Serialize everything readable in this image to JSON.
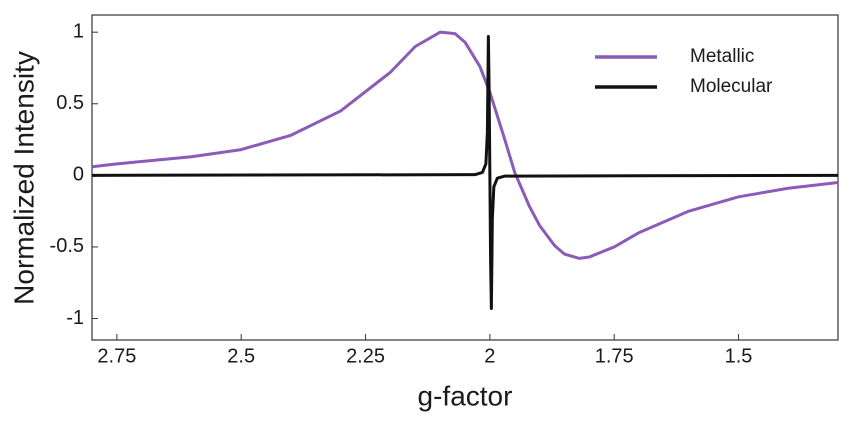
{
  "chart_data": {
    "type": "line",
    "xlabel": "g-factor",
    "ylabel": "Normalized Intensity",
    "xlim": [
      2.8,
      1.3
    ],
    "ylim": [
      -1.15,
      1.12
    ],
    "xticks": [
      2.75,
      2.5,
      2.25,
      2,
      1.75,
      1.5
    ],
    "yticks": [
      1,
      0.5,
      0,
      -0.5,
      -1
    ],
    "grid": false,
    "legend": "upper right",
    "series": [
      {
        "name": "Metallic",
        "color": "#8a5cb8",
        "x": [
          2.8,
          2.75,
          2.6,
          2.5,
          2.4,
          2.3,
          2.2,
          2.15,
          2.1,
          2.07,
          2.05,
          2.02,
          2.0,
          1.97,
          1.95,
          1.92,
          1.9,
          1.87,
          1.85,
          1.82,
          1.8,
          1.75,
          1.7,
          1.6,
          1.5,
          1.4,
          1.3
        ],
        "values": [
          0.06,
          0.08,
          0.13,
          0.18,
          0.28,
          0.45,
          0.72,
          0.9,
          1.0,
          0.99,
          0.93,
          0.76,
          0.58,
          0.25,
          0.02,
          -0.22,
          -0.35,
          -0.49,
          -0.55,
          -0.58,
          -0.57,
          -0.5,
          -0.4,
          -0.25,
          -0.15,
          -0.09,
          -0.05
        ]
      },
      {
        "name": "Molecular",
        "color": "#111111",
        "x": [
          2.8,
          2.03,
          2.015,
          2.008,
          2.005,
          2.003,
          2.0015,
          2.0,
          1.9985,
          1.997,
          1.995,
          1.992,
          1.985,
          1.97,
          1.3
        ],
        "values": [
          0,
          0.005,
          0.02,
          0.08,
          0.3,
          0.97,
          0.6,
          0,
          -0.6,
          -0.93,
          -0.3,
          -0.08,
          -0.02,
          -0.005,
          0
        ]
      }
    ]
  }
}
